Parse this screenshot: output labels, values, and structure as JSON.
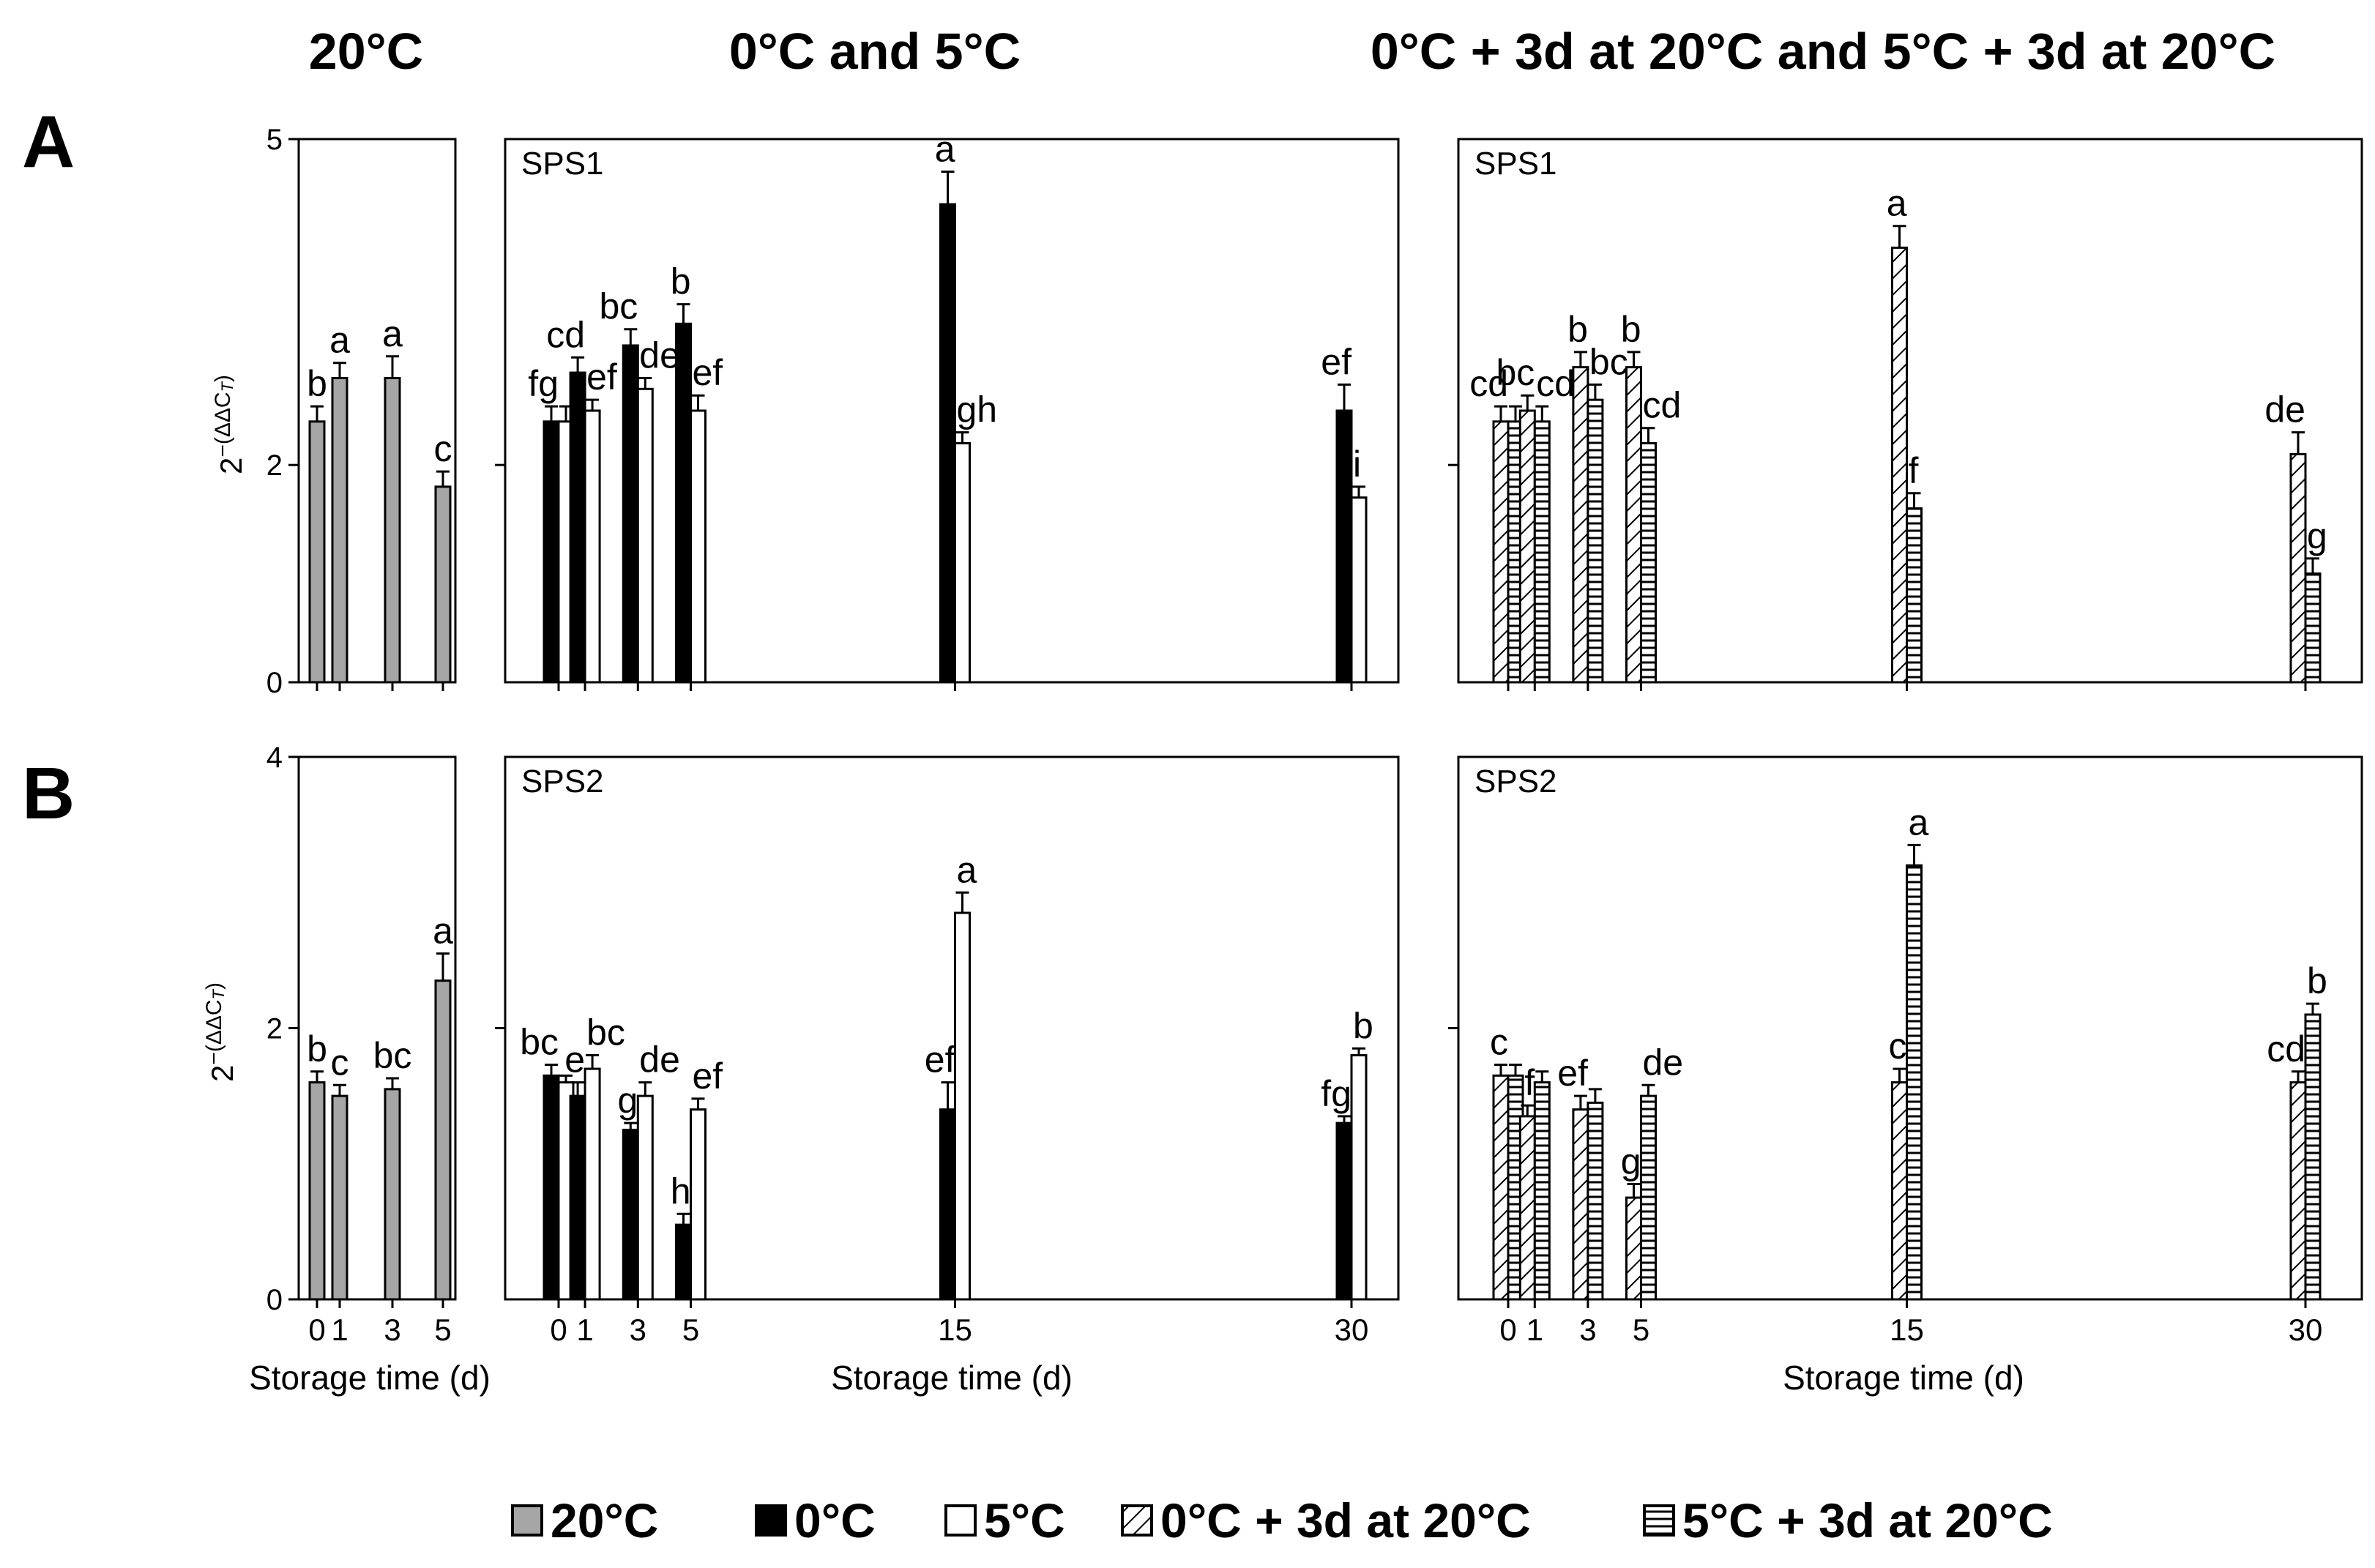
{
  "headers": {
    "col1": "20°C",
    "col2": "0°C and 5°C",
    "col3": "0°C + 3d at 20°C and 5°C + 3d at 20°C"
  },
  "row_labels": {
    "a": "A",
    "b": "B"
  },
  "axis": {
    "ylabel_base": "2",
    "ylabel_exp": "−(ΔΔC",
    "ylabel_sub": "T",
    "ylabel_close": ")",
    "xlabel": "Storage time (d)",
    "x_ticks": [
      "0",
      "1",
      "3",
      "5",
      "15",
      "30"
    ]
  },
  "legend": [
    {
      "key": "20C",
      "label": "20°C"
    },
    {
      "key": "0C",
      "label": "0°C"
    },
    {
      "key": "5C",
      "label": "5°C"
    },
    {
      "key": "0C3d",
      "label": "0°C + 3d at 20°C"
    },
    {
      "key": "5C3d",
      "label": "5°C + 3d at 20°C"
    }
  ],
  "colors": {
    "20C": "#a6a6a6",
    "0C": "#000000",
    "5C": "#ffffff",
    "axis": "#000000"
  },
  "chart_data": [
    {
      "type": "bar",
      "row": "A",
      "col": 1,
      "gene": "",
      "categories": [
        0,
        1,
        3,
        5
      ],
      "yticks": [
        0,
        2,
        5
      ],
      "ylim": [
        0,
        5
      ],
      "series": [
        {
          "name": "20°C",
          "key": "20C",
          "values": [
            2.4,
            2.8,
            2.8,
            1.8
          ],
          "errors": [
            0.14,
            0.14,
            0.2,
            0.14
          ],
          "letters": [
            "b",
            "a",
            "a",
            "c"
          ]
        }
      ]
    },
    {
      "type": "bar",
      "row": "A",
      "col": 2,
      "gene": "SPS1",
      "categories": [
        0,
        1,
        3,
        5,
        15,
        30
      ],
      "yticks": [
        2
      ],
      "ylim": [
        0,
        5
      ],
      "series": [
        {
          "name": "0°C",
          "key": "0C",
          "values": [
            2.4,
            2.85,
            3.1,
            3.3,
            4.4,
            2.5
          ],
          "errors": [
            0.14,
            0.14,
            0.15,
            0.18,
            0.3,
            0.24
          ],
          "letters": [
            "fg",
            "cd",
            "bc",
            "b",
            "a",
            "ef"
          ]
        },
        {
          "name": "5°C",
          "key": "5C",
          "values": [
            2.4,
            2.5,
            2.7,
            2.5,
            2.2,
            1.7
          ],
          "errors": [
            0.14,
            0.1,
            0.1,
            0.14,
            0.1,
            0.1
          ],
          "letters": [
            "",
            "ef",
            "de",
            "ef",
            "gh",
            "i"
          ]
        }
      ]
    },
    {
      "type": "bar",
      "row": "A",
      "col": 3,
      "gene": "SPS1",
      "categories": [
        0,
        1,
        3,
        5,
        15,
        30
      ],
      "yticks": [
        2
      ],
      "ylim": [
        0,
        5
      ],
      "series": [
        {
          "name": "0°C + 3d at 20°C",
          "key": "0C3d",
          "values": [
            2.4,
            2.5,
            2.9,
            2.9,
            4.0,
            2.1
          ],
          "errors": [
            0.14,
            0.14,
            0.14,
            0.14,
            0.2,
            0.2
          ],
          "letters": [
            "cd",
            "bc",
            "b",
            "b",
            "a",
            "de"
          ]
        },
        {
          "name": "5°C + 3d at 20°C",
          "key": "5C3d",
          "values": [
            2.4,
            2.4,
            2.6,
            2.2,
            1.6,
            1.0
          ],
          "errors": [
            0.14,
            0.14,
            0.14,
            0.14,
            0.14,
            0.14
          ],
          "letters": [
            "",
            "cd",
            "bc",
            "cd",
            "f",
            "g"
          ]
        }
      ]
    },
    {
      "type": "bar",
      "row": "B",
      "col": 1,
      "gene": "",
      "categories": [
        0,
        1,
        3,
        5
      ],
      "yticks": [
        0,
        2,
        4
      ],
      "ylim": [
        0,
        4
      ],
      "series": [
        {
          "name": "20°C",
          "key": "20C",
          "values": [
            1.6,
            1.5,
            1.55,
            2.35
          ],
          "errors": [
            0.08,
            0.08,
            0.08,
            0.2
          ],
          "letters": [
            "b",
            "c",
            "bc",
            "a"
          ]
        }
      ]
    },
    {
      "type": "bar",
      "row": "B",
      "col": 2,
      "gene": "SPS2",
      "categories": [
        0,
        1,
        3,
        5,
        15,
        30
      ],
      "yticks": [
        2
      ],
      "ylim": [
        0,
        4
      ],
      "series": [
        {
          "name": "0°C",
          "key": "0C",
          "values": [
            1.65,
            1.5,
            1.25,
            0.55,
            1.4,
            1.3
          ],
          "errors": [
            0.08,
            0.1,
            0.05,
            0.08,
            0.2,
            0.05
          ],
          "letters": [
            "bc",
            "e",
            "g",
            "h",
            "ef",
            "fg"
          ]
        },
        {
          "name": "5°C",
          "key": "5C",
          "values": [
            1.6,
            1.7,
            1.5,
            1.4,
            2.85,
            1.8
          ],
          "errors": [
            0.05,
            0.1,
            0.1,
            0.08,
            0.15,
            0.05
          ],
          "letters": [
            "",
            "bc",
            "de",
            "ef",
            "a",
            "b"
          ]
        }
      ]
    },
    {
      "type": "bar",
      "row": "B",
      "col": 3,
      "gene": "SPS2",
      "categories": [
        0,
        1,
        3,
        5,
        15,
        30
      ],
      "yticks": [
        2
      ],
      "ylim": [
        0,
        4
      ],
      "series": [
        {
          "name": "0°C + 3d at 20°C",
          "key": "0C3d",
          "values": [
            1.65,
            1.35,
            1.4,
            0.75,
            1.6,
            1.6
          ],
          "errors": [
            0.08,
            0.08,
            0.1,
            0.1,
            0.1,
            0.08
          ],
          "letters": [
            "c",
            "f",
            "ef",
            "g",
            "c",
            "cd"
          ]
        },
        {
          "name": "5°C + 3d at 20°C",
          "key": "5C3d",
          "values": [
            1.65,
            1.6,
            1.45,
            1.5,
            3.2,
            2.1
          ],
          "errors": [
            0.08,
            0.08,
            0.1,
            0.08,
            0.15,
            0.08
          ],
          "letters": [
            "",
            "",
            "",
            "de",
            "a",
            "b"
          ]
        }
      ]
    }
  ]
}
